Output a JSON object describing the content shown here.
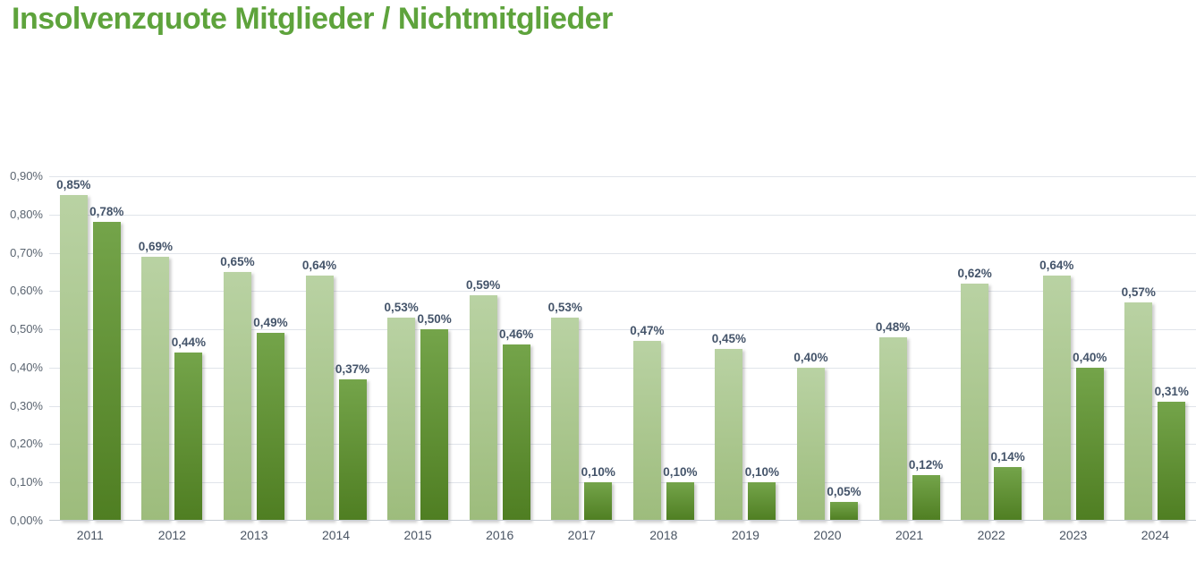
{
  "title": "Insolvenzquote Mitglieder / Nichtmitglieder",
  "colors": {
    "title_green": "#5ea33c",
    "bar_light_top": "#b9d2a3",
    "bar_light_bottom": "#9dbc7c",
    "bar_dark_top": "#74a44a",
    "bar_dark_bottom": "#4f7e22",
    "data_label": "#44546a",
    "axis_label": "#5a6470",
    "gridline": "#e0e4ea",
    "axis_line": "#c6ccd4"
  },
  "chart_data": {
    "type": "bar",
    "title": "Insolvenzquote Mitglieder / Nichtmitglieder",
    "categories": [
      "2011",
      "2012",
      "2013",
      "2014",
      "2015",
      "2016",
      "2017",
      "2018",
      "2019",
      "2020",
      "2021",
      "2022",
      "2023",
      "2024"
    ],
    "series": [
      {
        "name": "Mitglieder",
        "values": [
          0.85,
          0.69,
          0.65,
          0.64,
          0.53,
          0.59,
          0.53,
          0.47,
          0.45,
          0.4,
          0.48,
          0.62,
          0.64,
          0.57
        ],
        "labels": [
          "0,85%",
          "0,69%",
          "0,65%",
          "0,64%",
          "0,53%",
          "0,59%",
          "0,53%",
          "0,47%",
          "0,45%",
          "0,40%",
          "0,48%",
          "0,62%",
          "0,64%",
          "0,57%"
        ]
      },
      {
        "name": "Nichtmitglieder",
        "values": [
          0.78,
          0.44,
          0.49,
          0.37,
          0.5,
          0.46,
          0.1,
          0.1,
          0.1,
          0.05,
          0.12,
          0.14,
          0.4,
          0.31
        ],
        "labels": [
          "0,78%",
          "0,44%",
          "0,49%",
          "0,37%",
          "0,50%",
          "0,46%",
          "0,10%",
          "0,10%",
          "0,10%",
          "0,05%",
          "0,12%",
          "0,14%",
          "0,40%",
          "0,31%"
        ]
      }
    ],
    "xlabel": "",
    "ylabel": "",
    "ylim": [
      0,
      0.9
    ],
    "yticks": [
      0,
      0.1,
      0.2,
      0.3,
      0.4,
      0.5,
      0.6,
      0.7,
      0.8,
      0.9
    ],
    "ytick_labels": [
      "0,00%",
      "0,10%",
      "0,20%",
      "0,30%",
      "0,40%",
      "0,50%",
      "0,60%",
      "0,70%",
      "0,80%",
      "0,90%"
    ],
    "grid": true,
    "legend_position": "none",
    "value_format": "percent-comma",
    "data_labels": "outside-end"
  }
}
